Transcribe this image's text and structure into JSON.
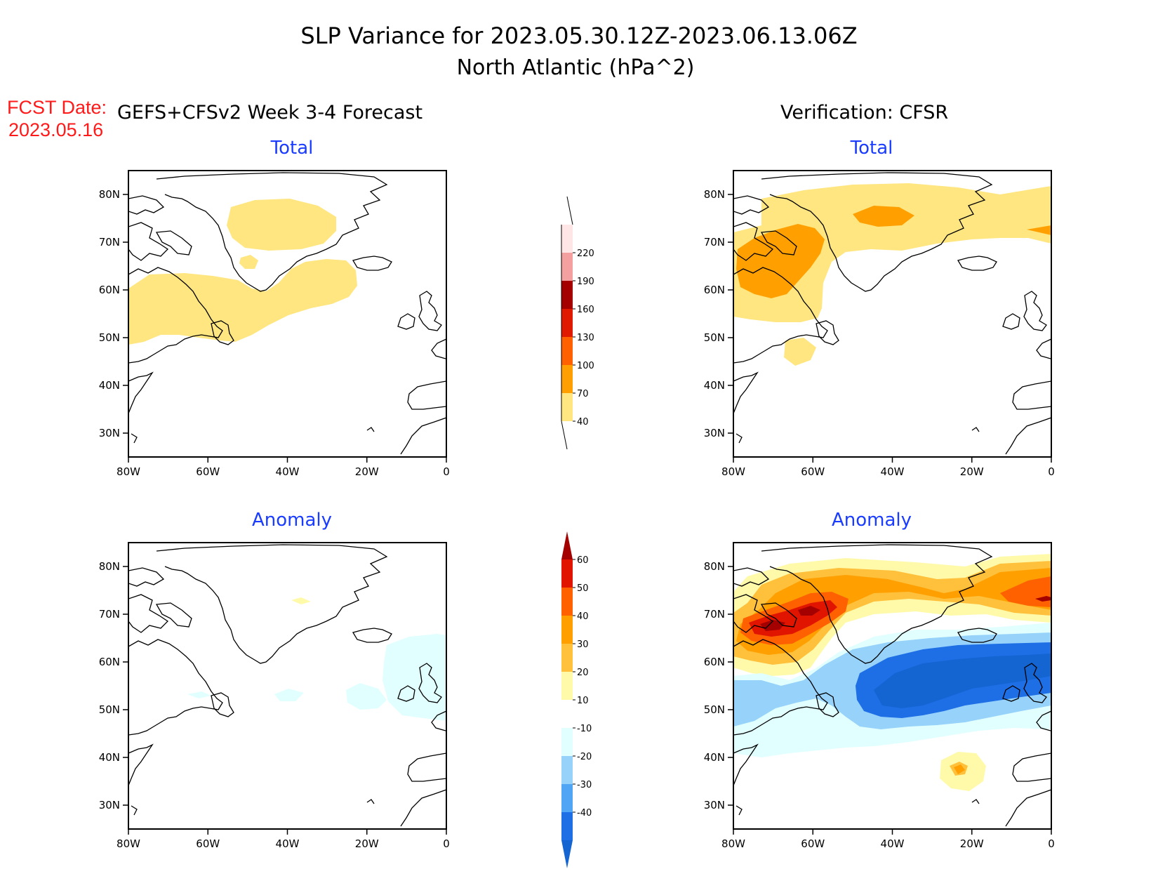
{
  "title": {
    "line1": "SLP Variance for 2023.05.30.12Z-2023.06.13.06Z",
    "line2": "North Atlantic (hPa^2)"
  },
  "fcst_date": {
    "label": "FCST Date:",
    "value": "2023.05.16"
  },
  "columns": {
    "left": "GEFS+CFSv2 Week 3-4 Forecast",
    "right": "Verification: CFSR"
  },
  "panel_titles": {
    "total": "Total",
    "anomaly": "Anomaly"
  },
  "axes": {
    "lat_labels": [
      "80N",
      "70N",
      "60N",
      "50N",
      "40N",
      "30N"
    ],
    "lon_labels": [
      "80W",
      "60W",
      "40W",
      "20W",
      "0"
    ],
    "lat_range": [
      25,
      85
    ],
    "lon_range": [
      -80,
      0
    ]
  },
  "colorbars": {
    "total": {
      "levels": [
        "40",
        "70",
        "100",
        "130",
        "160",
        "190",
        "220"
      ],
      "colors": [
        "#ffe680",
        "#ffa000",
        "#ff6000",
        "#e01a00",
        "#a50000",
        "#f4a0a0",
        "#ffe6e6"
      ]
    },
    "anomaly": {
      "levels": [
        "-40",
        "-30",
        "-20",
        "-10",
        "10",
        "20",
        "30",
        "40",
        "50",
        "60"
      ],
      "colors": [
        "#1464d2",
        "#1e6ee6",
        "#50a5f5",
        "#96d2fa",
        "#e1ffff",
        "#ffffff",
        "#fffaaa",
        "#ffc03c",
        "#ffa000",
        "#ff6000",
        "#e11400",
        "#a50000"
      ]
    }
  },
  "chart_data": {
    "type": "heatmap",
    "description_units": "hPa^2",
    "panels": [
      "Forecast Total",
      "Verification Total",
      "Forecast Anomaly",
      "Verification Anomaly"
    ]
  }
}
